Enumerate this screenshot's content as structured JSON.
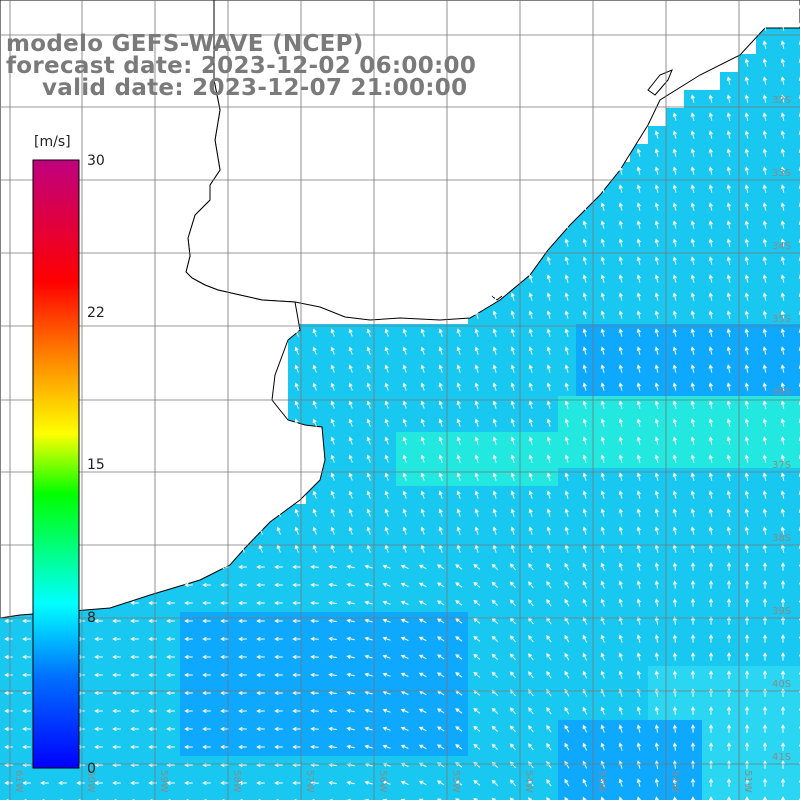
{
  "title": {
    "model": "modelo GEFS-WAVE (NCEP)",
    "forecast_date": "forecast date: 2023-12-02 06:00:00",
    "valid_date": "valid date: 2023-12-07 21:00:00"
  },
  "colorbar": {
    "unit": "[m/s]",
    "ticks": [
      "30",
      "22",
      "15",
      "8",
      "0"
    ],
    "min": 0,
    "max": 30,
    "colors": [
      "#0000ff",
      "#0080ff",
      "#00ffff",
      "#00ff00",
      "#ffff00",
      "#ff8000",
      "#ff0000",
      "#c00080"
    ]
  },
  "grid": {
    "lat_labels": [
      "32S",
      "33S",
      "34S",
      "35S",
      "36S",
      "37S",
      "38S",
      "39S",
      "40S",
      "41S"
    ],
    "lon_labels": [
      "61W",
      "60W",
      "59W",
      "58W",
      "57W",
      "56W",
      "55W",
      "54W",
      "53W",
      "52W",
      "51W"
    ]
  },
  "map": {
    "land_color": "#ffffff",
    "coast_color": "#000000",
    "grid_color": "#777777",
    "arrow_color": "#ffffff",
    "wind_field_description_colors": {
      "coastal_strong": "#33dd55",
      "typical": "#18c8f0",
      "moderate": "#0fa8ff",
      "strong_band": "#22e8e0"
    }
  }
}
